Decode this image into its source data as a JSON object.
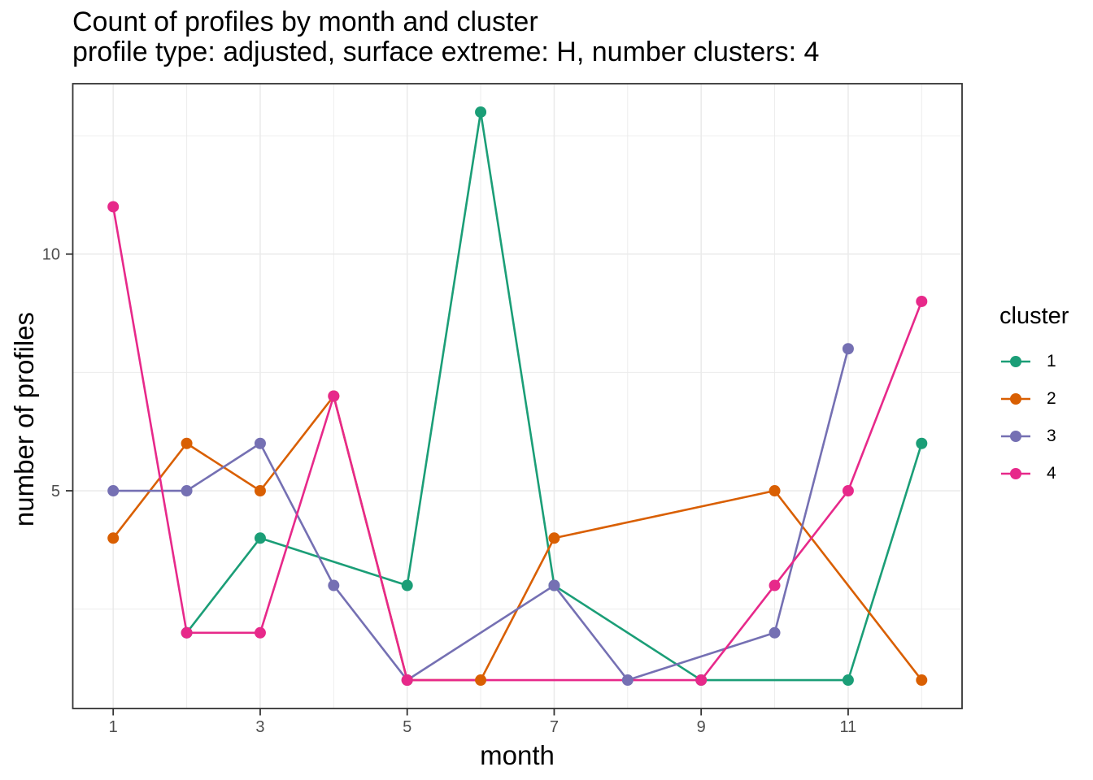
{
  "chart_data": {
    "type": "line",
    "title": "Count of profiles by month and cluster",
    "subtitle": "profile type: adjusted, surface extreme: H, number clusters: 4",
    "xlabel": "month",
    "ylabel": "number of profiles",
    "legend_title": "cluster",
    "legend_position": "right",
    "x_ticks": [
      1,
      3,
      5,
      7,
      9,
      11
    ],
    "x_minor": [
      2,
      4,
      6,
      8,
      10,
      12
    ],
    "y_ticks": [
      5,
      10
    ],
    "y_minor": [
      2.5,
      7.5,
      12.5
    ],
    "xlim": [
      0.45,
      12.55
    ],
    "ylim": [
      0.4,
      13.6
    ],
    "grid": {
      "major": true,
      "minor": true
    },
    "colors": {
      "background": "#FFFFFF",
      "gridline": "#EBEBEB",
      "panel_border": "#333333",
      "tick_text": "#4D4D4D",
      "text": "#000000"
    },
    "series": [
      {
        "name": "1",
        "color": "#1B9E77",
        "points": [
          [
            2,
            2
          ],
          [
            3,
            4
          ],
          [
            5,
            3
          ],
          [
            6,
            13
          ],
          [
            7,
            3
          ],
          [
            9,
            1
          ],
          [
            11,
            1
          ],
          [
            12,
            6
          ]
        ]
      },
      {
        "name": "2",
        "color": "#D95F02",
        "points": [
          [
            1,
            4
          ],
          [
            2,
            6
          ],
          [
            3,
            5
          ],
          [
            4,
            7
          ],
          [
            5,
            1
          ],
          [
            6,
            1
          ],
          [
            7,
            4
          ],
          [
            10,
            5
          ],
          [
            12,
            1
          ]
        ]
      },
      {
        "name": "3",
        "color": "#7570B3",
        "points": [
          [
            1,
            5
          ],
          [
            2,
            5
          ],
          [
            3,
            6
          ],
          [
            4,
            3
          ],
          [
            5,
            1
          ],
          [
            7,
            3
          ],
          [
            8,
            1
          ],
          [
            10,
            2
          ],
          [
            11,
            8
          ]
        ]
      },
      {
        "name": "4",
        "color": "#E7298A",
        "points": [
          [
            1,
            11
          ],
          [
            2,
            2
          ],
          [
            3,
            2
          ],
          [
            4,
            7
          ],
          [
            5,
            1
          ],
          [
            9,
            1
          ],
          [
            10,
            3
          ],
          [
            11,
            5
          ],
          [
            12,
            9
          ]
        ]
      }
    ]
  }
}
